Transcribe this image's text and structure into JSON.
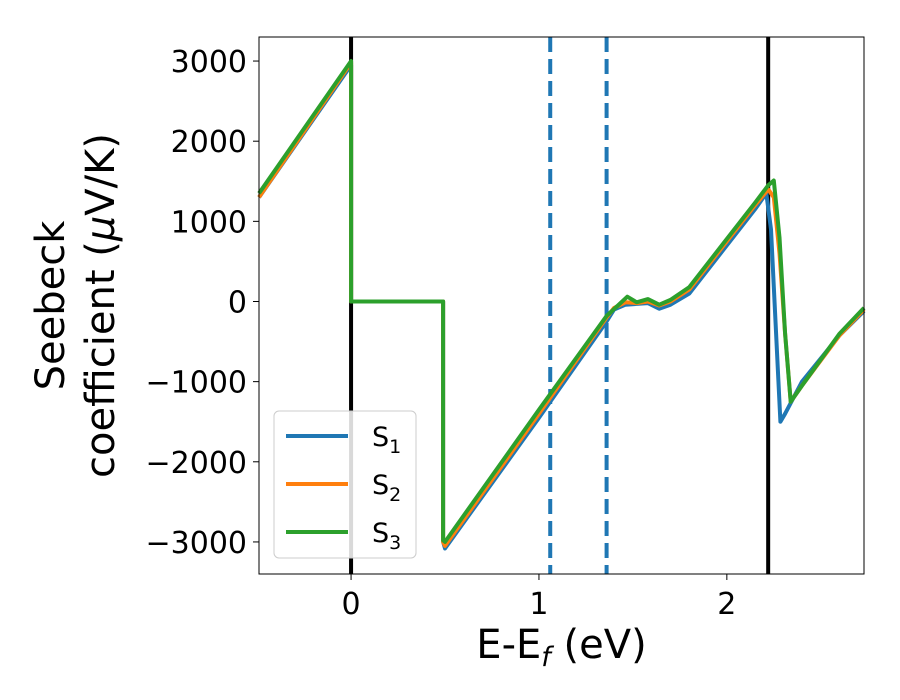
{
  "chart_data": {
    "type": "line",
    "xlabel_main": "E-E",
    "xlabel_sub": "f",
    "xlabel_unit": " (eV)",
    "ylabel_line1": "Seebeck",
    "ylabel_line2_text": "coefficient  (",
    "ylabel_mu": "μ",
    "ylabel_line2_end": "V/K)",
    "xlim": [
      -0.49,
      2.73
    ],
    "ylim": [
      -3400,
      3300
    ],
    "xticks": [
      0,
      1,
      2
    ],
    "xtick_labels": [
      "0",
      "1",
      "2"
    ],
    "yticks": [
      3000,
      2000,
      1000,
      0,
      -1000,
      -2000,
      -3000
    ],
    "ytick_labels": [
      "3000",
      "2000",
      "1000",
      "0",
      "−1000",
      "−2000",
      "−3000"
    ],
    "vlines_solid": [
      0.0,
      2.22
    ],
    "vlines_dashed": [
      1.06,
      1.36
    ],
    "legend_position": "lower-left",
    "series": [
      {
        "name_main": "S",
        "name_sub": "1",
        "color": "#1f77b4",
        "x": [
          -0.49,
          0.0,
          0.0,
          0.49,
          0.49,
          0.5,
          1.0,
          1.36,
          1.4,
          1.46,
          1.52,
          1.58,
          1.64,
          1.7,
          1.8,
          2.0,
          2.15,
          2.21,
          2.235,
          2.26,
          2.285,
          2.31,
          2.4,
          2.6,
          2.73
        ],
        "y": [
          1300,
          2950,
          0,
          0,
          -3000,
          -3080,
          -1450,
          -250,
          -100,
          -40,
          -30,
          -20,
          -90,
          -40,
          100,
          700,
          1150,
          1350,
          900,
          -300,
          -1500,
          -1400,
          -1000,
          -420,
          -120
        ]
      },
      {
        "name_main": "S",
        "name_sub": "2",
        "color": "#ff7f0e",
        "x": [
          -0.49,
          0.0,
          0.0,
          0.49,
          0.49,
          0.5,
          1.0,
          1.36,
          1.4,
          1.46,
          1.52,
          1.58,
          1.64,
          1.7,
          1.8,
          2.0,
          2.15,
          2.22,
          2.25,
          2.28,
          2.31,
          2.34,
          2.4,
          2.6,
          2.73
        ],
        "y": [
          1300,
          2980,
          0,
          0,
          -3000,
          -3050,
          -1400,
          -200,
          -80,
          -10,
          -20,
          0,
          -50,
          0,
          150,
          750,
          1200,
          1400,
          1300,
          600,
          -400,
          -1250,
          -1050,
          -420,
          -100
        ]
      },
      {
        "name_main": "S",
        "name_sub": "3",
        "color": "#2ca02c",
        "x": [
          -0.49,
          0.0,
          0.0,
          0.49,
          0.49,
          0.5,
          1.0,
          1.36,
          1.42,
          1.47,
          1.52,
          1.58,
          1.64,
          1.7,
          1.8,
          2.0,
          2.15,
          2.22,
          2.25,
          2.28,
          2.31,
          2.34,
          2.4,
          2.6,
          2.73
        ],
        "y": [
          1350,
          3000,
          0,
          0,
          -2980,
          -3000,
          -1350,
          -180,
          -50,
          60,
          -10,
          30,
          -40,
          20,
          180,
          780,
          1230,
          1450,
          1510,
          800,
          -400,
          -1250,
          -1050,
          -400,
          -80
        ]
      }
    ]
  }
}
